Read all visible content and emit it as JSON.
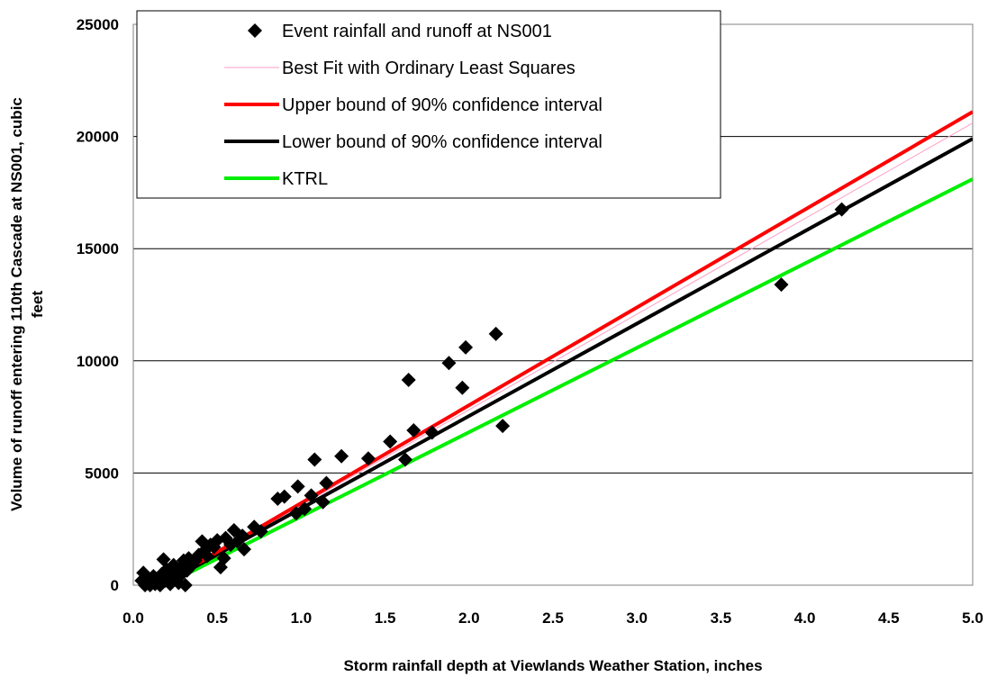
{
  "chart_data": {
    "type": "scatter",
    "xlabel": "Storm rainfall depth at Viewlands Weather Station, inches",
    "ylabel_line1": "Volume of runoff entering 110th Cascade at NS001, cubic",
    "ylabel_line2": "feet",
    "xlim": [
      0,
      5
    ],
    "ylim": [
      0,
      25000
    ],
    "x_ticks": [
      0.0,
      0.5,
      1.0,
      1.5,
      2.0,
      2.5,
      3.0,
      3.5,
      4.0,
      4.5,
      5.0
    ],
    "x_tick_labels": [
      "0.0",
      "0.5",
      "1.0",
      "1.5",
      "2.0",
      "2.5",
      "3.0",
      "3.5",
      "4.0",
      "4.5",
      "5.0"
    ],
    "y_ticks": [
      0,
      5000,
      10000,
      15000,
      20000,
      25000
    ],
    "y_tick_labels": [
      "0",
      "5000",
      "10000",
      "15000",
      "20000",
      "25000"
    ],
    "grid": "horizontal",
    "legend_position": "top-left",
    "legend": [
      "Event rainfall and runoff at NS001",
      "Best Fit with Ordinary Least Squares",
      "Upper bound of 90% confidence interval",
      "Lower bound of 90% confidence interval",
      "KTRL"
    ],
    "colors": {
      "points": "#000000",
      "ols": "#ff9ec7",
      "upper": "#ff0000",
      "lower": "#000000",
      "ktrl": "#00ee00"
    },
    "lines": [
      {
        "key": "ols",
        "x": [
          0.0,
          5.0
        ],
        "y": [
          -700,
          20600
        ]
      },
      {
        "key": "upper",
        "x": [
          0.0,
          5.0
        ],
        "y": [
          -700,
          21100
        ]
      },
      {
        "key": "lower",
        "x": [
          0.0,
          5.0
        ],
        "y": [
          -700,
          19900
        ]
      },
      {
        "key": "ktrl",
        "x": [
          0.0,
          5.0
        ],
        "y": [
          -700,
          18100
        ]
      }
    ],
    "points": [
      {
        "x": 0.05,
        "y": 200
      },
      {
        "x": 0.06,
        "y": 550
      },
      {
        "x": 0.07,
        "y": 0
      },
      {
        "x": 0.08,
        "y": 300
      },
      {
        "x": 0.09,
        "y": 100
      },
      {
        "x": 0.1,
        "y": 0
      },
      {
        "x": 0.11,
        "y": 250
      },
      {
        "x": 0.12,
        "y": 400
      },
      {
        "x": 0.13,
        "y": 50
      },
      {
        "x": 0.14,
        "y": 150
      },
      {
        "x": 0.15,
        "y": 300
      },
      {
        "x": 0.16,
        "y": 0
      },
      {
        "x": 0.17,
        "y": 500
      },
      {
        "x": 0.18,
        "y": 1150
      },
      {
        "x": 0.19,
        "y": 200
      },
      {
        "x": 0.2,
        "y": 700
      },
      {
        "x": 0.21,
        "y": 350
      },
      {
        "x": 0.22,
        "y": 50
      },
      {
        "x": 0.23,
        "y": 600
      },
      {
        "x": 0.24,
        "y": 900
      },
      {
        "x": 0.25,
        "y": 250
      },
      {
        "x": 0.26,
        "y": 400
      },
      {
        "x": 0.27,
        "y": 100
      },
      {
        "x": 0.28,
        "y": 750
      },
      {
        "x": 0.29,
        "y": 500
      },
      {
        "x": 0.3,
        "y": 1100
      },
      {
        "x": 0.31,
        "y": 0
      },
      {
        "x": 0.32,
        "y": 650
      },
      {
        "x": 0.33,
        "y": 1200
      },
      {
        "x": 0.35,
        "y": 900
      },
      {
        "x": 0.37,
        "y": 1100
      },
      {
        "x": 0.39,
        "y": 1350
      },
      {
        "x": 0.41,
        "y": 1950
      },
      {
        "x": 0.42,
        "y": 1500
      },
      {
        "x": 0.44,
        "y": 1300
      },
      {
        "x": 0.46,
        "y": 1800
      },
      {
        "x": 0.48,
        "y": 1700
      },
      {
        "x": 0.5,
        "y": 2000
      },
      {
        "x": 0.52,
        "y": 800
      },
      {
        "x": 0.54,
        "y": 1200
      },
      {
        "x": 0.55,
        "y": 2100
      },
      {
        "x": 0.58,
        "y": 1800
      },
      {
        "x": 0.6,
        "y": 2450
      },
      {
        "x": 0.62,
        "y": 1950
      },
      {
        "x": 0.65,
        "y": 2200
      },
      {
        "x": 0.66,
        "y": 1600
      },
      {
        "x": 0.72,
        "y": 2600
      },
      {
        "x": 0.76,
        "y": 2400
      },
      {
        "x": 0.86,
        "y": 3850
      },
      {
        "x": 0.9,
        "y": 3950
      },
      {
        "x": 0.97,
        "y": 3200
      },
      {
        "x": 0.98,
        "y": 4400
      },
      {
        "x": 1.02,
        "y": 3400
      },
      {
        "x": 1.06,
        "y": 4000
      },
      {
        "x": 1.08,
        "y": 5600
      },
      {
        "x": 1.13,
        "y": 3700
      },
      {
        "x": 1.15,
        "y": 4550
      },
      {
        "x": 1.24,
        "y": 5750
      },
      {
        "x": 1.4,
        "y": 5650
      },
      {
        "x": 1.53,
        "y": 6400
      },
      {
        "x": 1.62,
        "y": 5600
      },
      {
        "x": 1.64,
        "y": 9150
      },
      {
        "x": 1.67,
        "y": 6900
      },
      {
        "x": 1.78,
        "y": 6800
      },
      {
        "x": 1.88,
        "y": 9900
      },
      {
        "x": 1.96,
        "y": 8800
      },
      {
        "x": 1.98,
        "y": 10600
      },
      {
        "x": 2.16,
        "y": 11200
      },
      {
        "x": 2.2,
        "y": 7100
      },
      {
        "x": 3.86,
        "y": 13400
      },
      {
        "x": 4.22,
        "y": 16750
      }
    ]
  }
}
